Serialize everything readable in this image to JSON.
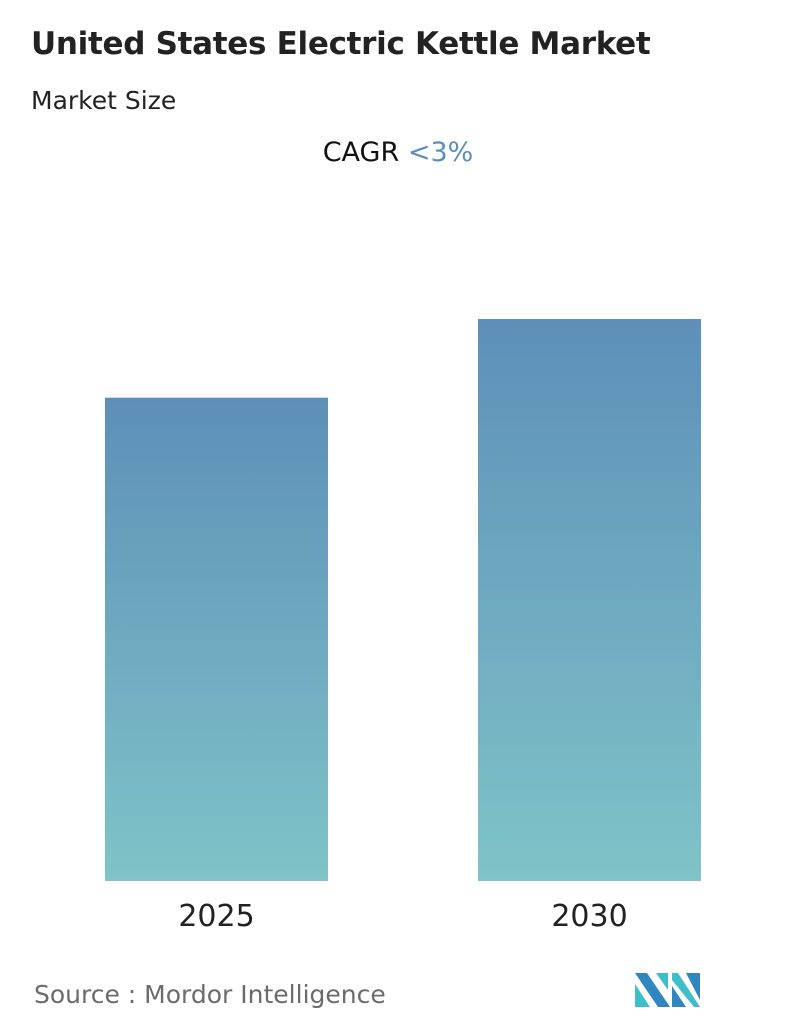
{
  "title": "United States Electric Kettle Market",
  "subtitle": "Market Size",
  "cagr": {
    "label": "CAGR",
    "value": "<3%"
  },
  "source": "Source :  Mordor Intelligence",
  "colors": {
    "bar_top": "#5d8fb8",
    "bar_bottom": "#7fc4c8",
    "cagr_value": "#5b8fb9"
  },
  "chart_data": {
    "type": "bar",
    "categories": [
      "2025",
      "2030"
    ],
    "values": [
      86,
      100
    ],
    "title": "United States Electric Kettle Market",
    "xlabel": "",
    "ylabel": "",
    "grid": false
  }
}
